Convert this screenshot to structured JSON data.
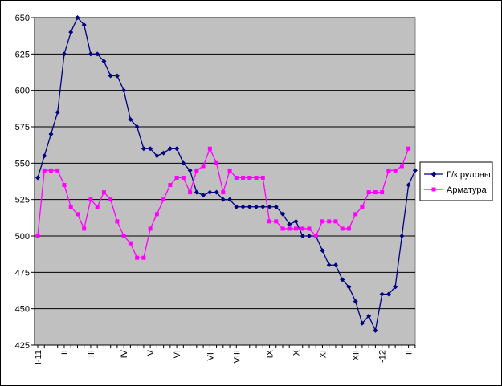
{
  "chart_data": {
    "type": "line",
    "title": "",
    "xlabel": "",
    "ylabel": "",
    "ylim": [
      425,
      650
    ],
    "y_ticks": [
      425,
      450,
      475,
      500,
      525,
      550,
      575,
      600,
      625,
      650
    ],
    "grid": true,
    "plot_background": "#C0C0C0",
    "legend_position": "right",
    "x_tick_labels": [
      {
        "label": "I-11",
        "index": 0
      },
      {
        "label": "II",
        "index": 4
      },
      {
        "label": "III",
        "index": 8
      },
      {
        "label": "IV",
        "index": 13
      },
      {
        "label": "V",
        "index": 17
      },
      {
        "label": "VI",
        "index": 21
      },
      {
        "label": "VII",
        "index": 26
      },
      {
        "label": "VIII",
        "index": 30
      },
      {
        "label": "IX",
        "index": 35
      },
      {
        "label": "X",
        "index": 39
      },
      {
        "label": "XI",
        "index": 43
      },
      {
        "label": "XII",
        "index": 48
      },
      {
        "label": "I-12",
        "index": 52
      },
      {
        "label": "II",
        "index": 56
      }
    ],
    "series": [
      {
        "name": "Г/к рулоны",
        "color": "#000080",
        "marker": "diamond",
        "values": [
          540,
          555,
          570,
          585,
          625,
          640,
          650,
          645,
          625,
          625,
          620,
          610,
          610,
          600,
          580,
          575,
          560,
          560,
          555,
          557,
          560,
          560,
          550,
          545,
          530,
          528,
          530,
          530,
          525,
          525,
          520,
          520,
          520,
          520,
          520,
          520,
          520,
          515,
          508,
          510,
          500,
          500,
          500,
          490,
          480,
          480,
          470,
          465,
          455,
          440,
          445,
          435,
          460,
          460,
          465,
          500,
          535,
          545
        ]
      },
      {
        "name": "Арматура",
        "color": "#FF00FF",
        "marker": "square",
        "values": [
          500,
          545,
          545,
          545,
          535,
          520,
          515,
          505,
          525,
          520,
          530,
          525,
          510,
          500,
          495,
          485,
          485,
          505,
          515,
          525,
          535,
          540,
          540,
          530,
          545,
          548,
          560,
          550,
          530,
          545,
          540,
          540,
          540,
          540,
          540,
          510,
          510,
          505,
          505,
          505,
          505,
          505,
          500,
          510,
          510,
          510,
          505,
          505,
          515,
          520,
          530,
          530,
          530,
          545,
          545,
          548,
          560
        ]
      }
    ]
  }
}
